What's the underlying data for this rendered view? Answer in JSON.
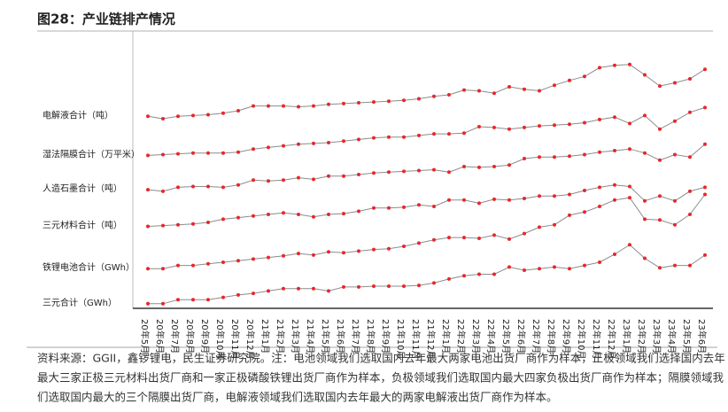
{
  "chart_data": {
    "type": "line",
    "title": "图28：产业链排产情况",
    "categories": [
      "20年5月",
      "20年6月",
      "20年7月",
      "20年8月",
      "20年9月",
      "20年10月",
      "20年11月",
      "20年12月",
      "21年1月",
      "21年2月",
      "21年3月",
      "21年4月",
      "21年5月",
      "21年6月",
      "21年7月",
      "21年8月",
      "21年9月",
      "21年10月",
      "21年11月",
      "21年12月",
      "22年1月",
      "22年2月",
      "22年3月",
      "22年4月",
      "22年5月",
      "22年6月",
      "22年7月",
      "22年8月",
      "22年9月",
      "22年10月",
      "22年11月",
      "22年12月",
      "23年1月",
      "23年2月",
      "23年3月",
      "23年4月",
      "23年5月",
      "23年6月"
    ],
    "line_color": "#8c8c8c",
    "series": [
      {
        "name": "电解液合计（吨）",
        "color": "#e8262b",
        "values": [
          243,
          240,
          243,
          244,
          245,
          247,
          250,
          256,
          256,
          256,
          255,
          256,
          258,
          259,
          260,
          261,
          262,
          263,
          265,
          268,
          270,
          276,
          275,
          272,
          280,
          277,
          275,
          282,
          288,
          293,
          304,
          307,
          308,
          295,
          281,
          285,
          290,
          302
        ]
      },
      {
        "name": "湿法隔膜合计（万平米）",
        "color": "#e8262b",
        "values": [
          194,
          195,
          196,
          197,
          197,
          197,
          198,
          202,
          204,
          206,
          208,
          209,
          210,
          212,
          214,
          216,
          217,
          217,
          219,
          221,
          221,
          222,
          230,
          229,
          227,
          229,
          231,
          232,
          233,
          235,
          239,
          242,
          234,
          244,
          227,
          237,
          248,
          254
        ]
      },
      {
        "name": "人造石墨合计（吨）",
        "color": "#e8262b",
        "values": [
          151,
          149,
          154,
          155,
          155,
          154,
          157,
          163,
          162,
          163,
          166,
          164,
          168,
          168,
          170,
          172,
          173,
          174,
          175,
          176,
          173,
          180,
          179,
          180,
          182,
          190,
          192,
          192,
          193,
          195,
          198,
          200,
          202,
          197,
          188,
          195,
          192,
          208
        ]
      },
      {
        "name": "三元材料合计（吨）",
        "color": "#e8262b",
        "values": [
          105,
          106,
          107,
          108,
          110,
          114,
          116,
          118,
          120,
          122,
          120,
          117,
          120,
          121,
          124,
          128,
          128,
          129,
          132,
          130,
          138,
          138,
          134,
          139,
          138,
          140,
          143,
          143,
          145,
          150,
          154,
          157,
          155,
          137,
          143,
          137,
          149,
          154
        ]
      },
      {
        "name": "铁锂电池合计（GWh）",
        "color": "#e8262b",
        "values": [
          52,
          52,
          56,
          56,
          58,
          60,
          62,
          64,
          66,
          68,
          71,
          69,
          73,
          72,
          74,
          76,
          77,
          80,
          84,
          88,
          91,
          91,
          90,
          94,
          89,
          96,
          104,
          107,
          119,
          123,
          130,
          138,
          141,
          114,
          113,
          107,
          120,
          145
        ]
      },
      {
        "name": "三元合计（GWh）",
        "color": "#e8262b",
        "values": [
          8,
          8,
          13,
          13,
          13,
          16,
          19,
          21,
          24,
          27,
          27,
          27,
          24,
          29,
          29,
          30,
          30,
          30,
          31,
          34,
          39,
          43,
          45,
          45,
          54,
          50,
          52,
          54,
          52,
          56,
          60,
          70,
          82,
          65,
          53,
          56,
          56,
          69
        ]
      }
    ],
    "ylim": [
      0,
      350
    ],
    "note": [
      "资料来源：GGII，鑫锣锂电，民生证券研究院。注：电池领域我们选取国内去年最大两家电池出货厂商作为样本，正极领域我们选择国内去年",
      "最大三家正极三元材料出货厂商和一家正极磷酸铁锂出货厂商作为样本，负极领域我们选取国内最大四家负极出货厂商作为样本；隔膜领域我",
      "们选取国内最大的三个隔膜出货厂商，电解液领域我们选取国内去年最大的两家电解液出货厂商作为样本。"
    ]
  }
}
